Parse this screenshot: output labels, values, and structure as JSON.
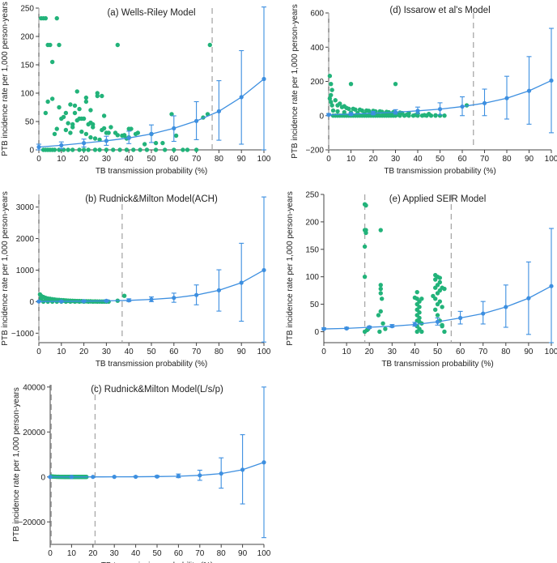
{
  "figure": {
    "xlabel": "TB transmission probability (%)",
    "ylabel": "PTB incidence rate per 1,000 person-years",
    "colors": {
      "model": "#3d8fe0",
      "study": "#22b37a",
      "ref": "#a8a8a8",
      "axis": "#444444"
    }
  },
  "chart_data": [
    {
      "id": "a",
      "type": "scatter",
      "title": "(a) Wells-Riley Model",
      "xlabel": "TB transmission probability (%)",
      "ylabel": "PTB incidence rate per 1,000 person-years",
      "xlim": [
        0,
        100
      ],
      "ylim": [
        0,
        250
      ],
      "xticks": [
        0,
        10,
        20,
        30,
        40,
        50,
        60,
        70,
        80,
        90,
        100
      ],
      "yticks": [
        0,
        50,
        100,
        150,
        200,
        250
      ],
      "ref_lines": [
        0,
        77
      ],
      "model": {
        "x": [
          0,
          10,
          20,
          30,
          40,
          50,
          60,
          70,
          80,
          90,
          100
        ],
        "y": [
          5,
          8,
          12,
          16,
          21,
          28,
          38,
          51,
          68,
          93,
          125
        ],
        "lo": [
          0,
          2,
          5,
          8,
          11,
          13,
          15,
          18,
          17,
          10,
          0
        ],
        "hi": [
          10,
          14,
          19,
          24,
          33,
          44,
          60,
          85,
          122,
          175,
          252
        ]
      },
      "observed": {
        "x": [
          1,
          2,
          3,
          4,
          8,
          5,
          6,
          9,
          2,
          4,
          6,
          3,
          5,
          7,
          9,
          11,
          13,
          15,
          18,
          20,
          22,
          25,
          27,
          30,
          33,
          36,
          39,
          42,
          45,
          48,
          52,
          56,
          60,
          64,
          66,
          70,
          76,
          4,
          8,
          12,
          16,
          19,
          23,
          26,
          29,
          34,
          38,
          41,
          44,
          50,
          10,
          14,
          17,
          21,
          24,
          28,
          31,
          35,
          37,
          40,
          43,
          47,
          55,
          59,
          61,
          7,
          12,
          15,
          18,
          21,
          23,
          26,
          29,
          32,
          3,
          6,
          9,
          11,
          13,
          15,
          17,
          19,
          21,
          23,
          25,
          27,
          14,
          16,
          18,
          20,
          22,
          24,
          28,
          30,
          35,
          38,
          39,
          40,
          52,
          73,
          75
        ],
        "y": [
          232,
          232,
          232,
          185,
          232,
          185,
          155,
          185,
          0,
          0,
          0,
          0,
          0,
          0,
          0,
          0,
          0,
          0,
          0,
          0,
          0,
          0,
          0,
          0,
          0,
          0,
          0,
          0,
          0,
          0,
          0,
          0,
          0,
          0,
          0,
          0,
          185,
          85,
          37,
          65,
          78,
          55,
          48,
          95,
          38,
          30,
          26,
          37,
          30,
          28,
          55,
          30,
          103,
          92,
          45,
          35,
          30,
          26,
          25,
          37,
          28,
          10,
          12,
          63,
          25,
          28,
          35,
          45,
          55,
          85,
          70,
          100,
          60,
          40,
          65,
          90,
          75,
          58,
          47,
          40,
          52,
          32,
          28,
          22,
          20,
          18,
          80,
          65,
          72,
          55,
          45,
          40,
          95,
          30,
          185,
          25,
          20,
          22,
          12,
          57,
          63
        ]
      }
    },
    {
      "id": "d",
      "type": "scatter",
      "title": "(d) Issarow et al's Model",
      "xlabel": "TB transmission probability (%)",
      "ylabel": "PTB incidence rate per 1,000 person-years",
      "xlim": [
        0,
        100
      ],
      "ylim": [
        -200,
        600
      ],
      "xticks": [
        0,
        10,
        20,
        30,
        40,
        50,
        60,
        70,
        80,
        90,
        100
      ],
      "yticks": [
        -200,
        0,
        200,
        400,
        600
      ],
      "ref_lines": [
        0,
        65
      ],
      "model": {
        "x": [
          0,
          10,
          20,
          30,
          40,
          50,
          60,
          70,
          80,
          90,
          100
        ],
        "y": [
          5,
          9,
          14,
          20,
          28,
          38,
          53,
          73,
          102,
          145,
          205
        ],
        "lo": [
          0,
          2,
          5,
          9,
          12,
          5,
          0,
          0,
          -20,
          -50,
          -100
        ],
        "hi": [
          12,
          18,
          25,
          35,
          50,
          75,
          110,
          155,
          230,
          345,
          510
        ]
      },
      "observed": {
        "x": [
          0.5,
          1,
          1.5,
          1,
          0.5,
          1,
          1.5,
          2,
          3,
          4,
          5,
          6,
          7,
          8,
          9,
          10,
          11,
          12,
          13,
          14,
          15,
          16,
          17,
          18,
          19,
          20,
          21,
          22,
          23,
          24,
          25,
          26,
          27,
          28,
          29,
          30,
          32,
          34,
          36,
          38,
          40,
          42,
          44,
          46,
          48,
          50,
          52,
          3,
          5,
          7,
          9,
          12,
          15,
          18,
          21,
          24,
          27,
          30,
          33,
          4,
          6,
          8,
          11,
          14,
          17,
          20,
          23,
          26,
          29,
          32,
          36,
          40,
          45,
          2,
          4,
          7,
          10,
          13,
          16,
          19,
          22,
          25,
          28,
          31,
          35,
          39,
          43,
          48,
          10,
          30,
          62
        ],
        "y": [
          232,
          185,
          150,
          120,
          100,
          80,
          60,
          0,
          0,
          0,
          0,
          0,
          0,
          0,
          0,
          0,
          0,
          0,
          0,
          0,
          0,
          0,
          0,
          0,
          0,
          0,
          0,
          0,
          0,
          0,
          0,
          0,
          0,
          0,
          0,
          0,
          0,
          0,
          0,
          0,
          0,
          0,
          0,
          0,
          0,
          0,
          0,
          90,
          70,
          55,
          40,
          35,
          30,
          28,
          25,
          22,
          20,
          18,
          15,
          60,
          50,
          45,
          40,
          35,
          30,
          28,
          25,
          22,
          20,
          18,
          15,
          12,
          10,
          30,
          25,
          20,
          18,
          15,
          12,
          10,
          8,
          8,
          6,
          5,
          5,
          4,
          3,
          2,
          185,
          185,
          60
        ]
      }
    },
    {
      "id": "b",
      "type": "scatter",
      "title": "(b) Rudnick&Milton Model(ACH)",
      "xlabel": "TB transmission probability (%)",
      "ylabel": "PTB incidence rate per 1,000 person-years",
      "xlim": [
        0,
        100
      ],
      "ylim": [
        -1300,
        3400
      ],
      "xticks": [
        0,
        10,
        20,
        30,
        40,
        50,
        60,
        70,
        80,
        90,
        100
      ],
      "yticks": [
        -1000,
        0,
        1000,
        2000,
        3000
      ],
      "ref_lines": [
        0,
        37
      ],
      "model": {
        "x": [
          0,
          10,
          20,
          30,
          40,
          50,
          60,
          70,
          80,
          90,
          100
        ],
        "y": [
          5,
          8,
          15,
          25,
          40,
          70,
          120,
          210,
          360,
          600,
          1000
        ],
        "lo": [
          -5,
          -5,
          -5,
          0,
          5,
          0,
          -20,
          -100,
          -300,
          -620,
          -1280
        ],
        "hi": [
          15,
          25,
          40,
          60,
          90,
          150,
          270,
          530,
          1010,
          1850,
          3320
        ]
      },
      "observed": {
        "x": [
          0.5,
          1,
          2,
          3,
          4,
          5,
          6,
          7,
          8,
          9,
          10,
          11,
          12,
          13,
          14,
          15,
          16,
          17,
          18,
          19,
          20,
          21,
          22,
          23,
          24,
          25,
          26,
          27,
          28,
          29,
          30,
          2,
          4,
          6,
          8,
          10,
          12,
          14,
          16,
          18,
          20,
          22,
          24,
          26,
          28,
          1,
          3,
          5,
          7,
          9,
          11,
          13,
          15,
          17,
          19,
          21,
          23,
          25,
          27,
          29,
          31,
          35,
          38
        ],
        "y": [
          230,
          185,
          150,
          120,
          100,
          90,
          80,
          70,
          60,
          55,
          50,
          45,
          40,
          35,
          30,
          28,
          25,
          22,
          20,
          18,
          15,
          12,
          10,
          8,
          6,
          5,
          4,
          3,
          2,
          1,
          0,
          0,
          0,
          0,
          0,
          0,
          0,
          0,
          0,
          0,
          0,
          0,
          0,
          0,
          0,
          100,
          80,
          60,
          50,
          40,
          30,
          25,
          20,
          18,
          15,
          12,
          10,
          8,
          6,
          4,
          2,
          30,
          185
        ]
      }
    },
    {
      "id": "e",
      "type": "scatter",
      "title": "(e) Applied SEIR Model",
      "xlabel": "TB transmission probability (%)",
      "ylabel": "PTB incidence rate per 1,000 person-years",
      "xlim": [
        0,
        100
      ],
      "ylim": [
        -20,
        250
      ],
      "xticks": [
        0,
        10,
        20,
        30,
        40,
        50,
        60,
        70,
        80,
        90,
        100
      ],
      "yticks": [
        0,
        50,
        100,
        150,
        200,
        250
      ],
      "ref_lines": [
        18,
        56
      ],
      "model": {
        "x": [
          0,
          10,
          20,
          30,
          40,
          50,
          60,
          70,
          80,
          90,
          100
        ],
        "y": [
          5,
          6,
          8,
          10,
          13,
          18,
          25,
          33,
          45,
          61,
          83
        ],
        "lo": [
          4,
          5,
          6,
          8,
          10,
          12,
          14,
          14,
          8,
          -5,
          -20
        ],
        "hi": [
          7,
          8,
          10,
          13,
          17,
          25,
          37,
          55,
          85,
          127,
          188
        ]
      },
      "observed": {
        "x": [
          18,
          18,
          18,
          18,
          18.5,
          18.5,
          18,
          18.5,
          25,
          25,
          25,
          25.5,
          25,
          24.5,
          25,
          41,
          41,
          41,
          41,
          41,
          41,
          41,
          41,
          42,
          42,
          42,
          42,
          42,
          43,
          43,
          43,
          49,
          49,
          49,
          49,
          49,
          50,
          50,
          50,
          50,
          50,
          51,
          51,
          51,
          51,
          51,
          52,
          52,
          52,
          53,
          53,
          19,
          19.5,
          20,
          24,
          26,
          27,
          40,
          42,
          48,
          52
        ],
        "y": [
          232,
          185,
          155,
          100,
          180,
          230,
          0,
          185,
          85,
          78,
          70,
          60,
          37,
          0,
          185,
          72,
          60,
          50,
          40,
          30,
          20,
          10,
          0,
          55,
          45,
          35,
          25,
          5,
          60,
          15,
          0,
          103,
          95,
          80,
          60,
          40,
          100,
          85,
          70,
          50,
          30,
          98,
          90,
          75,
          55,
          20,
          80,
          45,
          10,
          78,
          0,
          3,
          5,
          8,
          30,
          15,
          5,
          62,
          18,
          65,
          12
        ]
      }
    },
    {
      "id": "c",
      "type": "scatter",
      "title": "(c) Rudnick&Milton Model(L/s/p)",
      "xlabel": "TB transmission probability (%)",
      "ylabel": "PTB incidence rate per 1,000 person-years",
      "xlim": [
        0,
        100
      ],
      "ylim": [
        -30000,
        41000
      ],
      "xticks": [
        0,
        10,
        20,
        30,
        40,
        50,
        60,
        70,
        80,
        90,
        100
      ],
      "yticks": [
        -20000,
        0,
        20000,
        40000
      ],
      "ref_lines": [
        0.5,
        21
      ],
      "model": {
        "x": [
          0,
          10,
          20,
          30,
          40,
          50,
          60,
          70,
          80,
          90,
          100
        ],
        "y": [
          5,
          10,
          20,
          40,
          80,
          160,
          330,
          700,
          1500,
          3200,
          6500
        ],
        "lo": [
          0,
          0,
          0,
          0,
          0,
          -100,
          -300,
          -1500,
          -5000,
          -12000,
          -27000
        ],
        "hi": [
          20,
          40,
          80,
          150,
          300,
          600,
          1300,
          3000,
          8500,
          18800,
          40000
        ]
      },
      "observed": {
        "x": [
          0.5,
          1,
          1.5,
          2,
          2.5,
          3,
          3.5,
          4,
          4.5,
          5,
          5.5,
          6,
          6.5,
          7,
          7.5,
          8,
          8.5,
          9,
          9.5,
          10,
          10.5,
          11,
          11.5,
          12,
          12.5,
          13,
          13.5,
          14,
          14.5,
          15,
          15.5,
          16,
          16.5,
          17
        ],
        "y": [
          230,
          185,
          150,
          120,
          100,
          80,
          60,
          50,
          40,
          30,
          20,
          10,
          5,
          0,
          0,
          0,
          0,
          0,
          0,
          0,
          0,
          0,
          0,
          0,
          0,
          0,
          0,
          0,
          0,
          0,
          0,
          0,
          0,
          0
        ]
      }
    }
  ]
}
